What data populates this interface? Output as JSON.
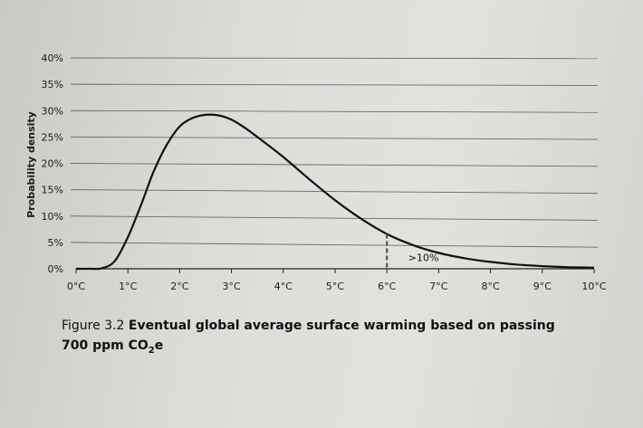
{
  "chart_data": {
    "type": "line",
    "title": "",
    "xlabel": "",
    "ylabel": "Probability density",
    "x_ticks": [
      "0°C",
      "1°C",
      "2°C",
      "3°C",
      "4°C",
      "5°C",
      "6°C",
      "7°C",
      "8°C",
      "9°C",
      "10°C"
    ],
    "y_ticks": [
      "0%",
      "5%",
      "10%",
      "15%",
      "20%",
      "25%",
      "30%",
      "35%",
      "40%"
    ],
    "xlim": [
      0,
      10
    ],
    "ylim": [
      0,
      40
    ],
    "grid": "horizontal",
    "series": [
      {
        "x": [
          0,
          0.25,
          0.5,
          0.75,
          1.0,
          1.25,
          1.5,
          1.75,
          2.0,
          2.25,
          2.5,
          2.75,
          3.0,
          3.25,
          3.5,
          4.0,
          4.5,
          5.0,
          5.5,
          6.0,
          6.5,
          7.0,
          7.5,
          8.0,
          8.5,
          9.0,
          9.5,
          10.0
        ],
        "y": [
          0,
          0,
          0.1,
          1.5,
          6.0,
          12.0,
          18.5,
          23.5,
          27.0,
          28.6,
          29.2,
          29.1,
          28.3,
          26.8,
          25.0,
          21.2,
          17.0,
          13.0,
          9.5,
          6.6,
          4.5,
          3.0,
          2.0,
          1.3,
          0.8,
          0.5,
          0.3,
          0.2
        ]
      }
    ],
    "marker": {
      "x": 6.0,
      "style": "dashed"
    },
    "annotation": {
      "text": ">10%",
      "x": 6.5,
      "y": 1.5
    }
  },
  "caption": {
    "figure_label": "Figure 3.2",
    "text_line1": "Eventual global average surface warming based on passing",
    "text_line2_pre": "700 ppm CO",
    "text_line2_sub": "2",
    "text_line2_post": "e"
  }
}
